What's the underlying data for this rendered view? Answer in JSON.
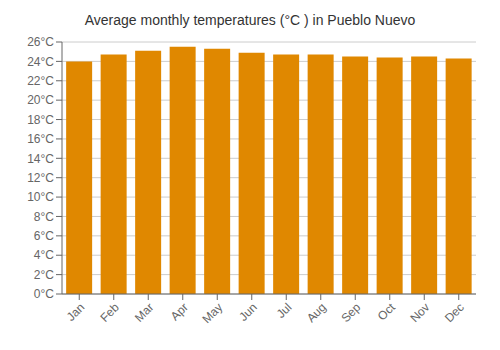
{
  "chart_data": {
    "type": "bar",
    "title": "Average monthly temperatures (°C ) in Pueblo Nuevo",
    "categories": [
      "Jan",
      "Feb",
      "Mar",
      "Apr",
      "May",
      "Jun",
      "Jul",
      "Aug",
      "Sep",
      "Oct",
      "Nov",
      "Dec"
    ],
    "values": [
      24.0,
      24.7,
      25.1,
      25.5,
      25.3,
      24.9,
      24.7,
      24.7,
      24.5,
      24.4,
      24.5,
      24.3
    ],
    "color": "#E08800",
    "ylim": [
      0,
      26
    ],
    "yticks": [
      {
        "value": 0,
        "label": "0°C"
      },
      {
        "value": 2,
        "label": "2°C"
      },
      {
        "value": 4,
        "label": "4°C"
      },
      {
        "value": 6,
        "label": "6°C"
      },
      {
        "value": 8,
        "label": "8°C"
      },
      {
        "value": 10,
        "label": "10°C"
      },
      {
        "value": 12,
        "label": "12°C"
      },
      {
        "value": 14,
        "label": "14°C"
      },
      {
        "value": 16,
        "label": "16°C"
      },
      {
        "value": 18,
        "label": "18°C"
      },
      {
        "value": 20,
        "label": "20°C"
      },
      {
        "value": 22,
        "label": "22°C"
      },
      {
        "value": 24,
        "label": "24°C"
      },
      {
        "value": 26,
        "label": "26°C"
      }
    ],
    "grid": true
  }
}
